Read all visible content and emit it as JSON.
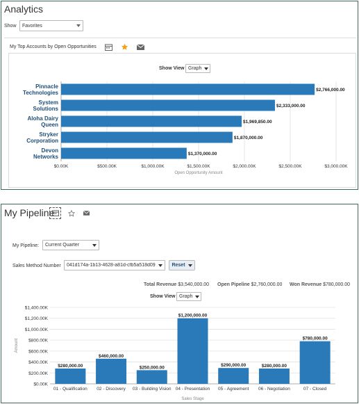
{
  "analytics": {
    "title": "Analytics",
    "show_label": "Show",
    "show_value": "Favorites",
    "section_title": "My Top Accounts by Open Opportunities",
    "show_view_label": "Show View",
    "show_view_value": "Graph"
  },
  "pipeline": {
    "title": "My Pipeline",
    "my_pipeline_label": "My Pipeline:",
    "my_pipeline_value": "Current Quarter",
    "sales_method_label": "Sales Method Number",
    "sales_method_value": "041d174a-1b13-4628-a81d-cfb5a518d09",
    "reset_label": "Reset",
    "total_revenue_label": "Total Revenue",
    "total_revenue_value": "$3,540,000.00",
    "open_pipeline_label": "Open Pipeline",
    "open_pipeline_value": "$2,760,000.00",
    "won_revenue_label": "Won Revenue",
    "won_revenue_value": "$780,000.00",
    "show_view_label": "Show View",
    "show_view_value": "Graph"
  },
  "colors": {
    "bar": "#2a7ab9",
    "border": "#3c6a5e",
    "star": "#f0a31a"
  },
  "chart_data": [
    {
      "type": "bar",
      "orientation": "horizontal",
      "categories": [
        [
          "Pinnacle",
          "Technologies"
        ],
        [
          "System",
          "Solutions"
        ],
        [
          "Aloha Dairy",
          "Queen"
        ],
        [
          "Stryker",
          "Corporation"
        ],
        [
          "Devon",
          "Networks"
        ]
      ],
      "values": [
        2766000,
        2333000,
        1969850,
        1870000,
        1370000
      ],
      "data_labels": [
        "$2,766,000.00",
        "$2,333,000.00",
        "$1,969,850.00",
        "$1,870,000.00",
        "$1,370,000.00"
      ],
      "ticks": [
        0,
        500000,
        1000000,
        1500000,
        2000000,
        2500000,
        3000000
      ],
      "tick_labels": [
        "$0.00K",
        "$500.00K",
        "$1,000.00K",
        "$1,500.00K",
        "$2,000.00K",
        "$2,500.00K",
        "$3,000.00K"
      ],
      "xlabel": "Open Opportunity Amount",
      "xlim": [
        0,
        3000000
      ],
      "grid": true
    },
    {
      "type": "bar",
      "orientation": "vertical",
      "categories": [
        "01 - Qualification",
        "02 - Discovery",
        "03 - Building Vision",
        "04 - Presentation",
        "05 - Agreement",
        "06 - Negotiation",
        "07 - Closed"
      ],
      "values": [
        280000,
        460000,
        250000,
        1200000,
        290000,
        280000,
        780000
      ],
      "data_labels": [
        "$280,000.00",
        "$460,000.00",
        "$250,000.00",
        "$1,200,000.00",
        "$290,000.00",
        "$280,000.00",
        "$780,000.00"
      ],
      "ticks": [
        0,
        200000,
        400000,
        600000,
        800000,
        1000000,
        1200000,
        1400000
      ],
      "tick_labels": [
        "$0.00K",
        "$200.00K",
        "$400.00K",
        "$600.00K",
        "$800.00K",
        "$1,000.00K",
        "$1,200.00K",
        "$1,400.00K"
      ],
      "xlabel": "Sales Stage",
      "ylabel": "Amount",
      "ylim": [
        0,
        1400000
      ],
      "grid": true
    }
  ]
}
